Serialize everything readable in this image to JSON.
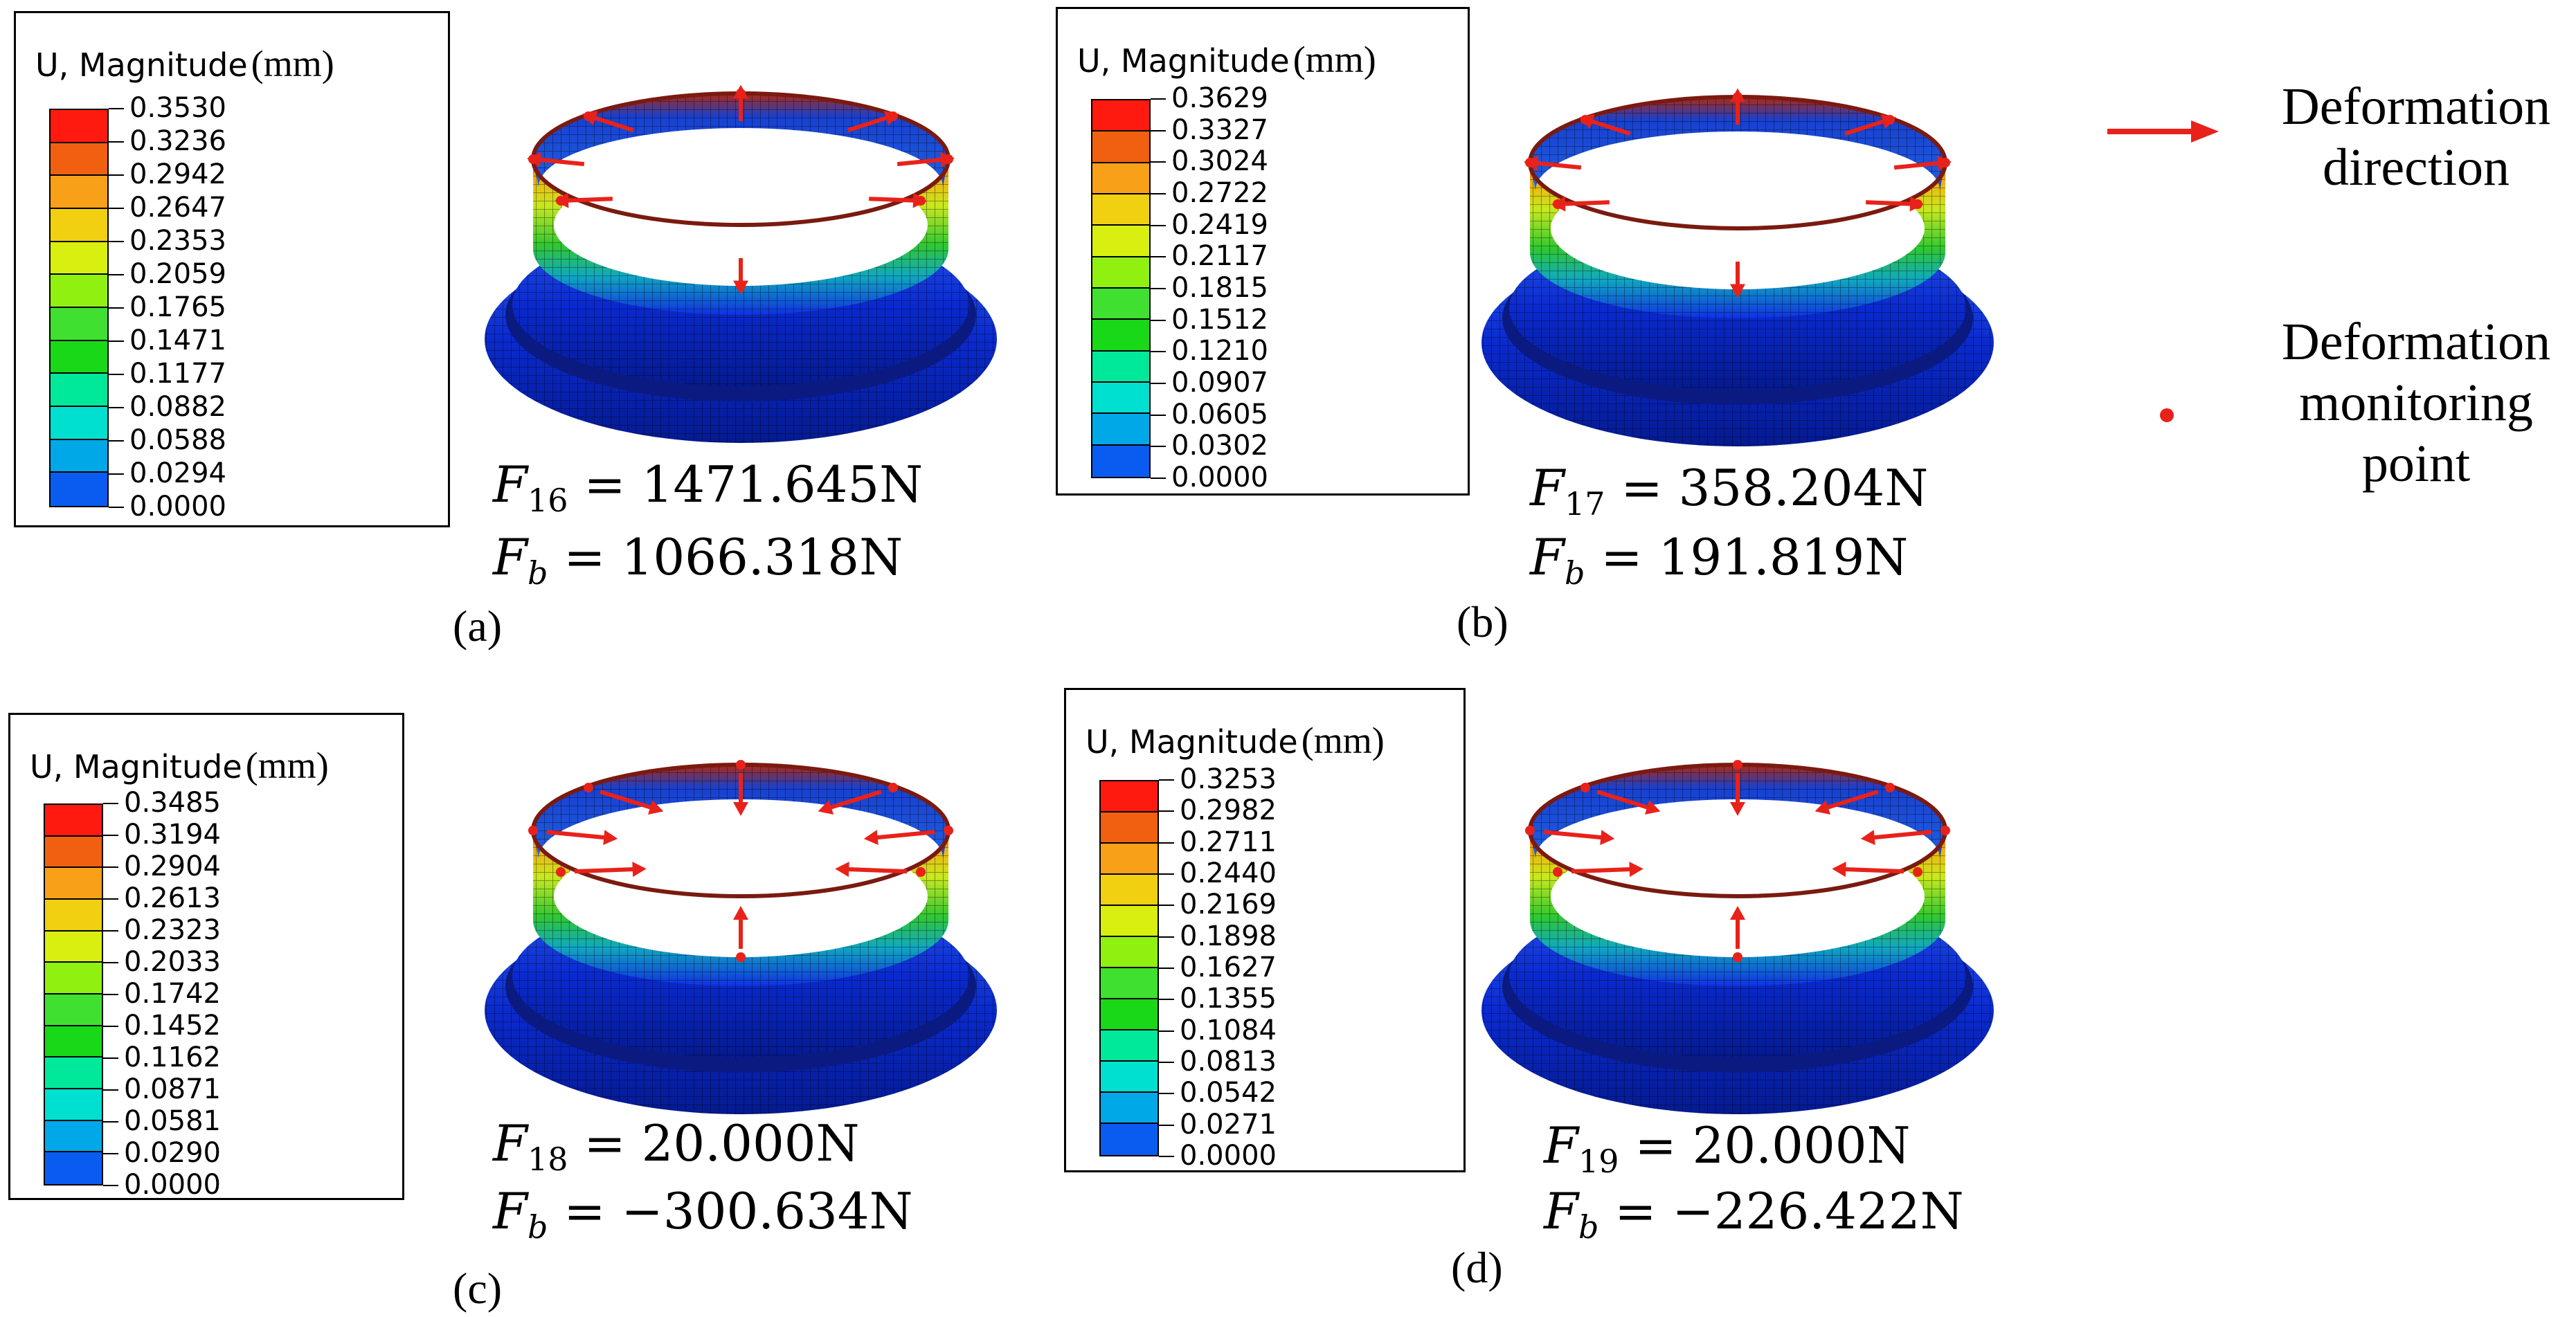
{
  "colors": {
    "arrow": "#e8221a",
    "point": "#e8221a",
    "scale": [
      "#0000ff",
      "#0a5cf0",
      "#00a8e8",
      "#00e0d0",
      "#00e89a",
      "#18d818",
      "#40e030",
      "#90f010",
      "#d8ef10",
      "#f0d010",
      "#f8a018",
      "#f06010",
      "#ff1a10"
    ]
  },
  "panels": [
    {
      "label": "(a)",
      "legend": {
        "quantity": "U, Magnitude",
        "unit": "(mm)",
        "values": [
          "0.3530",
          "0.3236",
          "0.2942",
          "0.2647",
          "0.2353",
          "0.2059",
          "0.1765",
          "0.1471",
          "0.1177",
          "0.0882",
          "0.0588",
          "0.0294",
          "0.0000"
        ]
      },
      "force_sub": "16",
      "force_value": "1471.645N",
      "fb_sub": "b",
      "fb_value": "1066.318N",
      "deformation": "outward"
    },
    {
      "label": "(b)",
      "legend": {
        "quantity": "U, Magnitude",
        "unit": "(mm)",
        "values": [
          "0.3629",
          "0.3327",
          "0.3024",
          "0.2722",
          "0.2419",
          "0.2117",
          "0.1815",
          "0.1512",
          "0.1210",
          "0.0907",
          "0.0605",
          "0.0302",
          "0.0000"
        ]
      },
      "force_sub": "17",
      "force_value": "358.204N",
      "fb_sub": "b",
      "fb_value": "191.819N",
      "deformation": "outward"
    },
    {
      "label": "(c)",
      "legend": {
        "quantity": "U, Magnitude",
        "unit": "(mm)",
        "values": [
          "0.3485",
          "0.3194",
          "0.2904",
          "0.2613",
          "0.2323",
          "0.2033",
          "0.1742",
          "0.1452",
          "0.1162",
          "0.0871",
          "0.0581",
          "0.0290",
          "0.0000"
        ]
      },
      "force_sub": "18",
      "force_value": "20.000N",
      "fb_sub": "b",
      "fb_value": "−300.634N",
      "deformation": "inward"
    },
    {
      "label": "(d)",
      "legend": {
        "quantity": "U, Magnitude",
        "unit": "(mm)",
        "values": [
          "0.3253",
          "0.2982",
          "0.2711",
          "0.2440",
          "0.2169",
          "0.1898",
          "0.1627",
          "0.1355",
          "0.1084",
          "0.0813",
          "0.0542",
          "0.0271",
          "0.0000"
        ]
      },
      "force_sub": "19",
      "force_value": "20.000N",
      "fb_sub": "b",
      "fb_value": "−226.422N",
      "deformation": "inward"
    }
  ],
  "key": {
    "arrow_text": [
      "Deformation",
      "direction"
    ],
    "point_text": [
      "Deformation",
      "monitoring",
      "point"
    ]
  }
}
